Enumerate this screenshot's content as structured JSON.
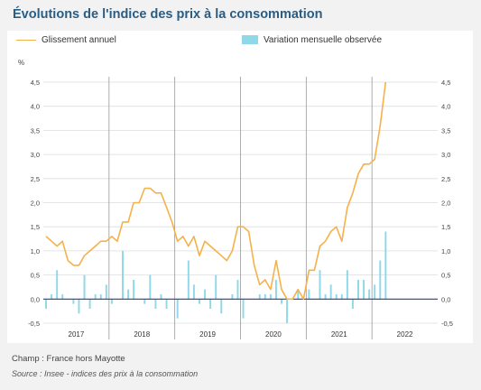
{
  "title": "Évolutions de l'indice des prix à la consommation",
  "footer": {
    "champ": "Champ : France hors Mayotte",
    "source": "Source : Insee - indices des prix à la consommation"
  },
  "colors": {
    "line": "#f5b14a",
    "bar": "#8fd8e9",
    "grid": "#dddddd",
    "separator": "#999999",
    "zero": "#2a3f8f"
  },
  "chart_data": {
    "type": "bar",
    "unit_label": "%",
    "legend": [
      "Glissement annuel",
      "Variation mensuelle observée"
    ],
    "legend_position": "top",
    "grid": true,
    "ylim": [
      -0.5,
      4.5
    ],
    "y_ticks": [
      "-0,5",
      "0,0",
      "0,5",
      "1,0",
      "1,5",
      "2,0",
      "2,5",
      "3,0",
      "3,5",
      "4,0",
      "4,5"
    ],
    "years": [
      "2017",
      "2018",
      "2019",
      "2020",
      "2021",
      "2022"
    ],
    "series": [
      {
        "name": "Glissement annuel",
        "type": "line",
        "values": [
          1.3,
          1.2,
          1.1,
          1.2,
          0.8,
          0.7,
          0.7,
          0.9,
          1.0,
          1.1,
          1.2,
          1.2,
          1.3,
          1.2,
          1.6,
          1.6,
          2.0,
          2.0,
          2.3,
          2.3,
          2.2,
          2.2,
          1.9,
          1.6,
          1.2,
          1.3,
          1.1,
          1.3,
          0.9,
          1.2,
          1.1,
          1.0,
          0.9,
          0.8,
          1.0,
          1.5,
          1.5,
          1.4,
          0.7,
          0.3,
          0.4,
          0.2,
          0.8,
          0.2,
          0.0,
          0.0,
          0.2,
          0.0,
          0.6,
          0.6,
          1.1,
          1.2,
          1.4,
          1.5,
          1.2,
          1.9,
          2.2,
          2.6,
          2.8,
          2.8,
          2.9,
          3.6,
          4.5
        ]
      },
      {
        "name": "Variation mensuelle observée",
        "type": "bar",
        "values": [
          -0.2,
          0.1,
          0.6,
          0.1,
          0.0,
          -0.1,
          -0.3,
          0.5,
          -0.2,
          0.1,
          0.1,
          0.3,
          -0.1,
          0.0,
          1.0,
          0.2,
          0.4,
          0.0,
          -0.1,
          0.5,
          -0.2,
          0.1,
          -0.2,
          0.0,
          -0.4,
          0.0,
          0.8,
          0.3,
          -0.1,
          0.2,
          -0.2,
          0.5,
          -0.3,
          0.0,
          0.1,
          0.4,
          -0.4,
          0.0,
          0.0,
          0.1,
          0.1,
          0.1,
          0.4,
          -0.1,
          -0.5,
          0.0,
          0.2,
          0.0,
          0.2,
          0.0,
          0.6,
          0.1,
          0.3,
          0.1,
          0.1,
          0.6,
          -0.2,
          0.4,
          0.4,
          0.2,
          0.3,
          0.8,
          1.4
        ]
      }
    ]
  }
}
